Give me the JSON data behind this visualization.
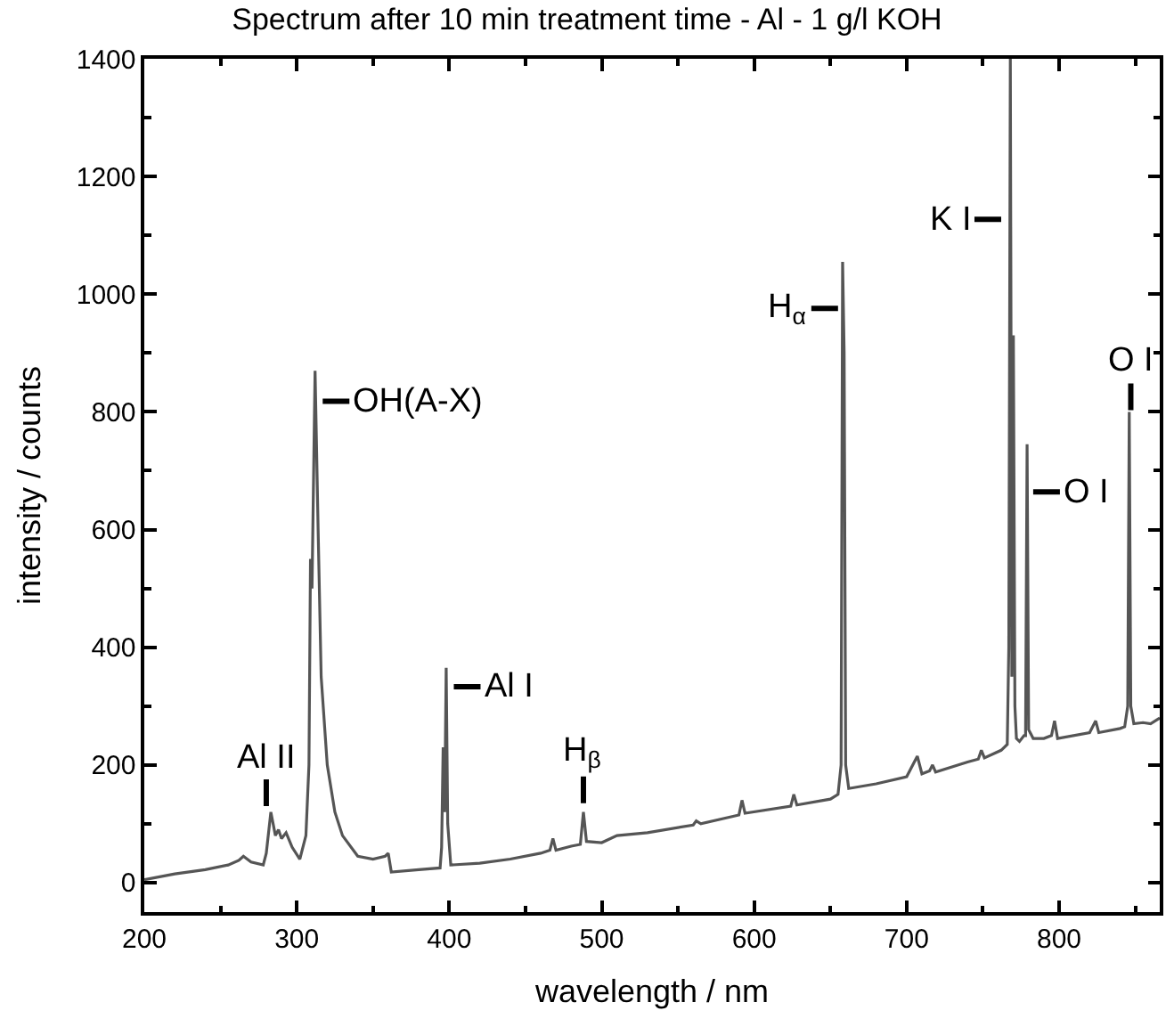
{
  "chart_data": {
    "type": "line",
    "title": "Spectrum after 10 min treatment time - Al - 1 g/l KOH",
    "xlabel": "wavelength / nm",
    "ylabel": "intensity / counts",
    "xlim": [
      200,
      866
    ],
    "ylim": [
      -50,
      1400
    ],
    "xticks": [
      200,
      300,
      400,
      500,
      600,
      700,
      800
    ],
    "yticks": [
      0,
      200,
      400,
      600,
      800,
      1000,
      1200,
      1400
    ],
    "marker": "none",
    "line_style": "solid",
    "series": [
      {
        "color": "#555555",
        "x": [
          200,
          220,
          240,
          255,
          262,
          265,
          270,
          278,
          280,
          283,
          286,
          288,
          290,
          293,
          297,
          302,
          306,
          308,
          309,
          310,
          312,
          314,
          316,
          320,
          325,
          330,
          340,
          350,
          358,
          360,
          362,
          380,
          394,
          395,
          396,
          397,
          398,
          399,
          401,
          420,
          440,
          460,
          466,
          468,
          470,
          480,
          486,
          488,
          490,
          500,
          510,
          530,
          560,
          562,
          565,
          590,
          592,
          594,
          624,
          626,
          628,
          650,
          655,
          657,
          658,
          659,
          660,
          662,
          680,
          700,
          707,
          710,
          715,
          717,
          719,
          740,
          747,
          749,
          751,
          762,
          766,
          767,
          768,
          769,
          770,
          771,
          772,
          774,
          777,
          778,
          779,
          780,
          783,
          790,
          795,
          797,
          799,
          820,
          824,
          826,
          840,
          843,
          845,
          846,
          847,
          849,
          855,
          860,
          866
        ],
        "values": [
          5,
          15,
          22,
          30,
          38,
          45,
          35,
          30,
          50,
          120,
          80,
          90,
          75,
          85,
          60,
          40,
          80,
          200,
          550,
          500,
          870,
          600,
          350,
          200,
          120,
          80,
          45,
          40,
          45,
          50,
          18,
          22,
          25,
          60,
          230,
          120,
          365,
          100,
          30,
          33,
          40,
          50,
          55,
          75,
          55,
          62,
          65,
          120,
          70,
          68,
          80,
          85,
          98,
          105,
          100,
          115,
          140,
          118,
          130,
          150,
          132,
          142,
          150,
          200,
          1055,
          900,
          200,
          160,
          168,
          180,
          215,
          185,
          190,
          200,
          188,
          205,
          210,
          225,
          212,
          225,
          235,
          400,
          1400,
          350,
          930,
          300,
          245,
          240,
          250,
          250,
          745,
          260,
          245,
          245,
          250,
          275,
          245,
          255,
          275,
          255,
          262,
          265,
          300,
          800,
          300,
          270,
          272,
          270,
          280
        ]
      }
    ],
    "annotations": [
      {
        "text": "Al II",
        "x": 280,
        "y": 130
      },
      {
        "text": "OH(A-X)",
        "x": 317,
        "y": 818
      },
      {
        "text": "Al I",
        "x": 403,
        "y": 333
      },
      {
        "text": "H$_{β}$",
        "x": 488,
        "y": 135
      },
      {
        "text": "H$_{α}$",
        "x": 655,
        "y": 976
      },
      {
        "text": "K I",
        "x": 762,
        "y": 1127
      },
      {
        "text": "O I",
        "x": 783,
        "y": 664
      },
      {
        "text": "O I",
        "x": 847,
        "y": 803
      }
    ]
  }
}
